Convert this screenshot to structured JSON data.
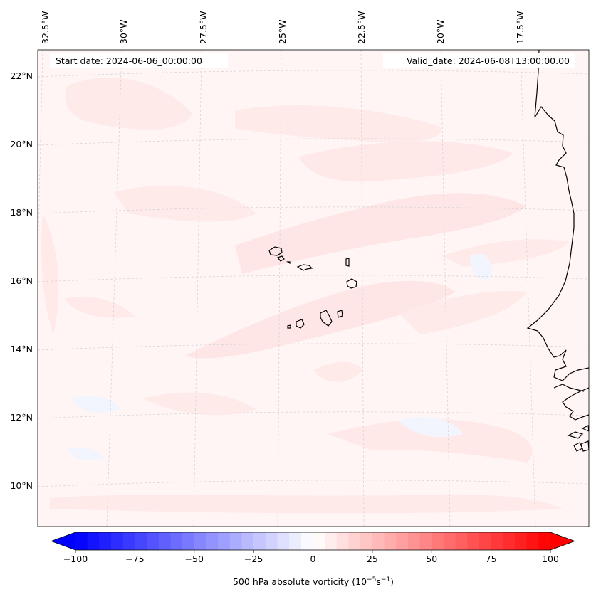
{
  "map": {
    "start_date": "Start date: 2024-06-06_00:00:00",
    "valid_date": "Valid_date: 2024-06-08T13:00:00.00",
    "lon_labels": [
      "32.5°W",
      "30°W",
      "27.5°W",
      "25°W",
      "22.5°W",
      "20°W",
      "17.5°W"
    ],
    "lat_labels": [
      "22°N",
      "20°N",
      "18°N",
      "16°N",
      "14°N",
      "12°N",
      "10°N"
    ],
    "field_colors": {
      "background": "#fff5f5",
      "positive_band": "#ffe9e9",
      "negative_patch": "#f2f4fe"
    },
    "coast_color": "#000000",
    "grid_color": "#d0d0d0"
  },
  "colorbar": {
    "label_main": "500 hPa absolute vorticity (10",
    "label_exp1": "−5",
    "label_mid": "s",
    "label_exp2": "−1",
    "label_end": ")",
    "ticks": [
      "−100",
      "−75",
      "−50",
      "−25",
      "0",
      "25",
      "50",
      "75",
      "100"
    ],
    "colormap": "bwr",
    "min_color": "#0000ff",
    "mid_color": "#ffffff",
    "max_color": "#ff0000",
    "vmin": -100,
    "vmax": 100
  }
}
